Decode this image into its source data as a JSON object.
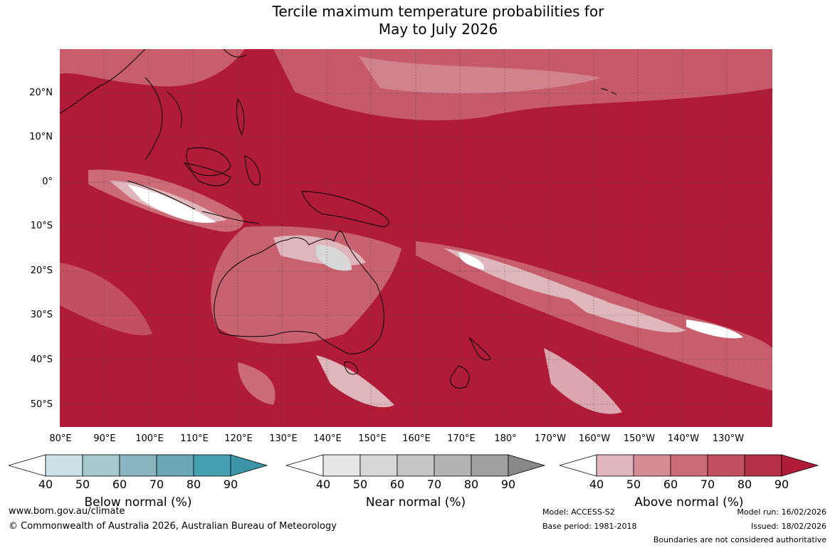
{
  "title": {
    "line1": "Tercile maximum temperature probabilities for",
    "line2": "May to July 2026"
  },
  "map": {
    "latitude_labels": [
      "20°N",
      "10°N",
      "0°",
      "10°S",
      "20°S",
      "30°S",
      "40°S",
      "50°S"
    ],
    "longitude_labels": [
      "80°E",
      "90°E",
      "100°E",
      "110°E",
      "120°E",
      "130°E",
      "140°E",
      "150°E",
      "160°E",
      "170°E",
      "180°",
      "170°W",
      "160°W",
      "150°W",
      "140°W",
      "130°W"
    ],
    "dominant_category": "Above normal",
    "dominant_probability_range": "80–90",
    "colors": {
      "above_90": "#b01c38",
      "above_80": "#c23a50",
      "above_70": "#cc6a76",
      "above_60": "#d48c95",
      "above_50": "#e0b6bd",
      "near_50": "#d8d8d8",
      "white": "#ffffff"
    }
  },
  "colorbars": [
    {
      "label": "Below normal (%)",
      "ticks": [
        "40",
        "50",
        "60",
        "70",
        "80",
        "90"
      ],
      "colors": [
        "#ffffff",
        "#c9e1e7",
        "#a7c8cc",
        "#8ab4c0",
        "#6aa8b8",
        "#44a0b2",
        "#3a94a6"
      ]
    },
    {
      "label": "Near normal (%)",
      "ticks": [
        "40",
        "50",
        "60",
        "70",
        "80",
        "90"
      ],
      "colors": [
        "#ffffff",
        "#e6e6e6",
        "#d7d7d7",
        "#c6c6c6",
        "#b4b4b4",
        "#a0a0a0",
        "#888888"
      ]
    },
    {
      "label": "Above normal (%)",
      "ticks": [
        "40",
        "50",
        "60",
        "70",
        "80",
        "90"
      ],
      "colors": [
        "#ffffff",
        "#e0b6bd",
        "#d48c95",
        "#cc6a76",
        "#c2505e",
        "#b52f45",
        "#b01c38"
      ]
    }
  ],
  "footer": {
    "website": "www.bom.gov.au/climate",
    "copyright": "© Commonwealth of Australia 2026, Australian Bureau of Meteorology",
    "model": "Model: ACCESS-S2",
    "base_period": "Base period: 1981-2018",
    "model_run": "Model run: 16/02/2026",
    "issued": "Issued: 18/02/2026",
    "disclaimer": "Boundaries are not considered authoritative"
  }
}
